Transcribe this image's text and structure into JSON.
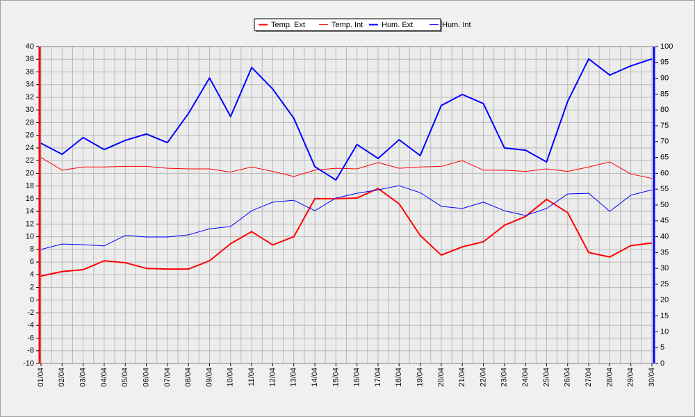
{
  "chart_data": {
    "type": "line",
    "categories": [
      "01/04",
      "02/04",
      "03/04",
      "04/04",
      "05/04",
      "06/04",
      "07/04",
      "08/04",
      "09/04",
      "10/04",
      "11/04",
      "12/04",
      "13/04",
      "14/04",
      "15/04",
      "16/04",
      "17/04",
      "18/04",
      "19/04",
      "20/04",
      "21/04",
      "22/04",
      "23/04",
      "24/04",
      "25/04",
      "26/04",
      "27/04",
      "28/04",
      "29/04",
      "30/04"
    ],
    "series": [
      {
        "name": "Temp. Ext",
        "color": "#ff0000",
        "line_width": 2,
        "values": [
          3.8,
          4.5,
          4.8,
          6.2,
          5.9,
          5.0,
          4.9,
          4.9,
          6.2,
          8.9,
          10.8,
          8.7,
          10.0,
          16.0,
          16.0,
          16.1,
          17.6,
          15.2,
          10.2,
          7.1,
          8.4,
          9.2,
          11.8,
          13.2,
          15.9,
          13.8,
          7.5,
          6.8,
          8.6,
          9.0
        ]
      },
      {
        "name": "Temp. Int",
        "color": "#ff0000",
        "line_width": 1,
        "values": [
          22.5,
          20.5,
          21.0,
          21.0,
          21.1,
          21.1,
          20.8,
          20.7,
          20.7,
          20.2,
          21.0,
          20.3,
          19.5,
          20.5,
          20.8,
          20.7,
          21.7,
          20.8,
          21.0,
          21.1,
          22.0,
          20.5,
          20.5,
          20.3,
          20.7,
          20.3,
          21.0,
          21.8,
          19.9,
          19.2
        ]
      },
      {
        "name": "Hum. Ext",
        "color": "#0000ff",
        "line_width": 2,
        "axis": "y2",
        "values": [
          69.5,
          66.0,
          71.3,
          67.5,
          70.4,
          72.4,
          69.7,
          78.9,
          90.1,
          77.9,
          93.4,
          86.6,
          77.4,
          62.1,
          57.9,
          69.1,
          64.7,
          70.6,
          65.6,
          81.4,
          84.9,
          82.0,
          68.0,
          67.3,
          63.6,
          82.7,
          96.1,
          91.0,
          93.9,
          96.1
        ]
      },
      {
        "name": "Hum. Int",
        "color": "#0000ff",
        "line_width": 1,
        "axis": "y2",
        "values": [
          36.0,
          37.7,
          37.5,
          37.1,
          40.4,
          39.9,
          39.9,
          40.6,
          42.5,
          43.2,
          48.2,
          50.9,
          51.5,
          48.2,
          52.2,
          53.7,
          54.8,
          56.1,
          53.9,
          49.6,
          48.9,
          50.9,
          48.2,
          46.7,
          48.9,
          53.5,
          53.7,
          48.0,
          53.1,
          54.8
        ]
      }
    ],
    "ylim": [
      -10,
      40
    ],
    "yticks": [
      -10,
      -8,
      -6,
      -4,
      -2,
      0,
      2,
      4,
      6,
      8,
      10,
      12,
      14,
      16,
      18,
      20,
      22,
      24,
      26,
      28,
      30,
      32,
      34,
      36,
      38,
      40
    ],
    "y2lim": [
      0,
      100
    ],
    "y2ticks": [
      0,
      5,
      10,
      15,
      20,
      25,
      30,
      35,
      40,
      45,
      50,
      55,
      60,
      65,
      70,
      75,
      80,
      85,
      90,
      95,
      100
    ],
    "yaxis_color": "#ff0000",
    "y2axis_color": "#0000ff",
    "grid": true,
    "legend": "top"
  }
}
